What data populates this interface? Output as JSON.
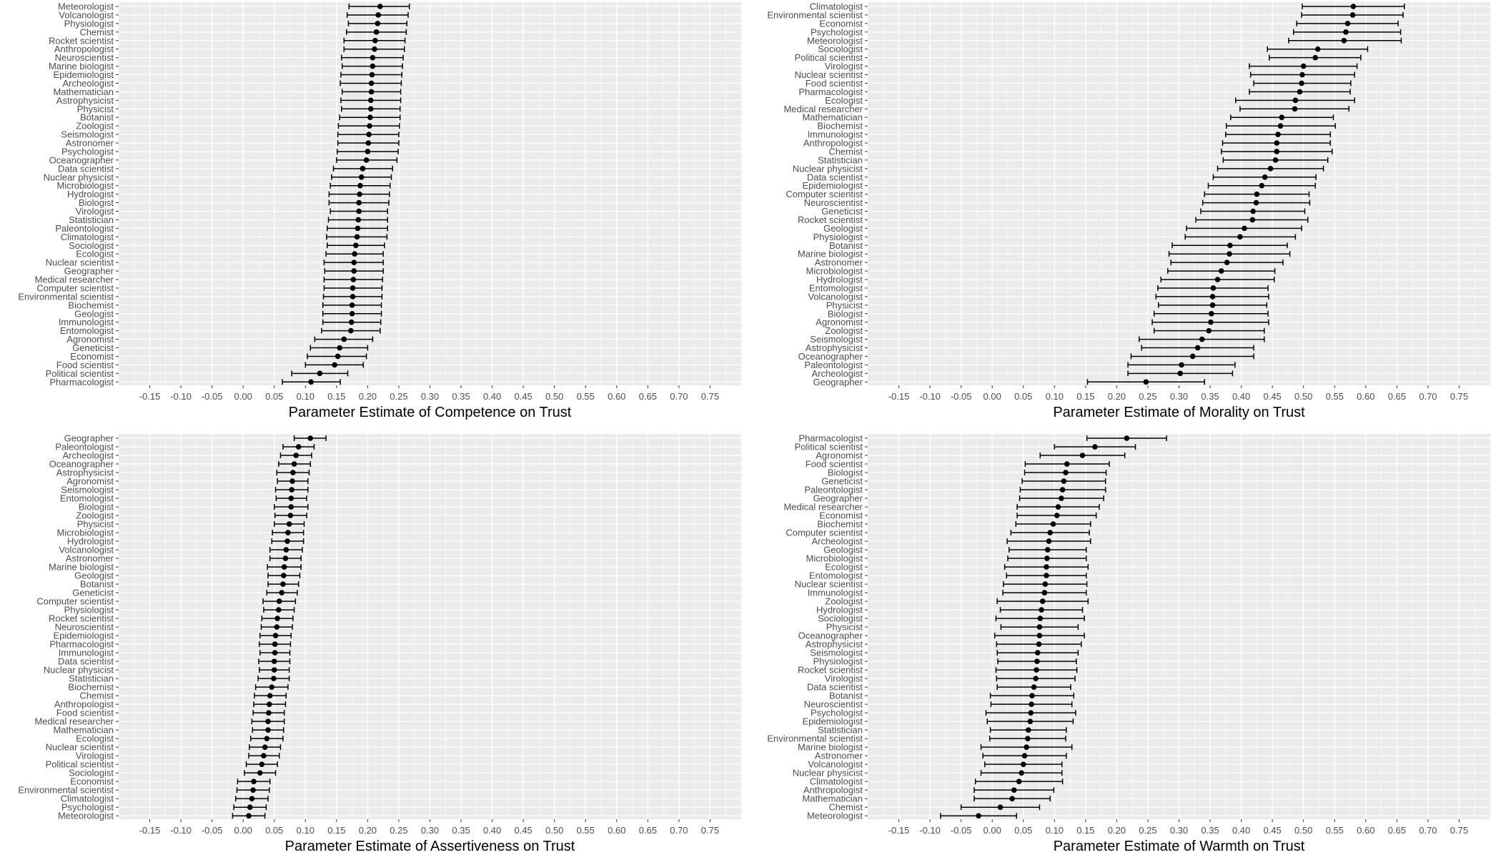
{
  "chart_data": [
    {
      "type": "errorbar",
      "xlabel": "Parameter Estimate of Competence on Trust",
      "xlim": [
        -0.2,
        0.8
      ],
      "xticks": [
        "-0.15",
        "-0.10",
        "-0.05",
        "0.00",
        "0.05",
        "0.10",
        "0.15",
        "0.20",
        "0.25",
        "0.30",
        "0.35",
        "0.40",
        "0.45",
        "0.50",
        "0.55",
        "0.60",
        "0.65",
        "0.70",
        "0.75"
      ],
      "categories": [
        "Meteorologist",
        "Volcanologist",
        "Physiologist",
        "Chemist",
        "Rocket scientist",
        "Anthropologist",
        "Neuroscientist",
        "Marine biologist",
        "Epidemiologist",
        "Archeologist",
        "Mathematician",
        "Astrophysicist",
        "Physicist",
        "Botanist",
        "Zoologist",
        "Seismologist",
        "Astronomer",
        "Psychologist",
        "Oceanographer",
        "Data scientist",
        "Nuclear physicist",
        "Microbiologist",
        "Hydrologist",
        "Biologist",
        "Virologist",
        "Statistician",
        "Paleontologist",
        "Climatologist",
        "Sociologist",
        "Ecologist",
        "Nuclear scientist",
        "Geographer",
        "Medical researcher",
        "Computer scientist",
        "Environmental scientist",
        "Biochemist",
        "Geologist",
        "Immunologist",
        "Entomologist",
        "Agronomist",
        "Geneticist",
        "Economist",
        "Food scientist",
        "Political scientist",
        "Pharmacologist"
      ],
      "estimates": [
        0.22,
        0.217,
        0.216,
        0.214,
        0.212,
        0.211,
        0.208,
        0.208,
        0.207,
        0.206,
        0.206,
        0.205,
        0.205,
        0.204,
        0.203,
        0.202,
        0.201,
        0.2,
        0.198,
        0.192,
        0.19,
        0.188,
        0.187,
        0.186,
        0.186,
        0.185,
        0.184,
        0.183,
        0.181,
        0.179,
        0.178,
        0.178,
        0.177,
        0.176,
        0.176,
        0.175,
        0.175,
        0.174,
        0.173,
        0.162,
        0.155,
        0.152,
        0.147,
        0.123,
        0.109
      ],
      "ci_low": [
        0.17,
        0.167,
        0.169,
        0.166,
        0.162,
        0.162,
        0.158,
        0.159,
        0.157,
        0.156,
        0.159,
        0.157,
        0.158,
        0.155,
        0.153,
        0.152,
        0.152,
        0.151,
        0.15,
        0.145,
        0.142,
        0.14,
        0.138,
        0.138,
        0.14,
        0.137,
        0.135,
        0.134,
        0.135,
        0.133,
        0.13,
        0.131,
        0.13,
        0.13,
        0.129,
        0.128,
        0.128,
        0.128,
        0.126,
        0.115,
        0.108,
        0.103,
        0.1,
        0.078,
        0.063
      ],
      "ci_high": [
        0.267,
        0.265,
        0.263,
        0.262,
        0.26,
        0.259,
        0.257,
        0.256,
        0.255,
        0.254,
        0.253,
        0.253,
        0.252,
        0.252,
        0.251,
        0.25,
        0.25,
        0.249,
        0.247,
        0.24,
        0.238,
        0.236,
        0.235,
        0.234,
        0.232,
        0.232,
        0.232,
        0.231,
        0.227,
        0.225,
        0.225,
        0.225,
        0.224,
        0.223,
        0.223,
        0.222,
        0.222,
        0.221,
        0.22,
        0.208,
        0.2,
        0.198,
        0.193,
        0.168,
        0.156
      ]
    },
    {
      "type": "errorbar",
      "xlabel": "Parameter Estimate of Morality on Trust",
      "xlim": [
        -0.2,
        0.8
      ],
      "xticks": [
        "-0.15",
        "-0.10",
        "-0.05",
        "0.00",
        "0.05",
        "0.10",
        "0.15",
        "0.20",
        "0.25",
        "0.30",
        "0.35",
        "0.40",
        "0.45",
        "0.50",
        "0.55",
        "0.60",
        "0.65",
        "0.70",
        "0.75"
      ],
      "categories": [
        "Climatologist",
        "Environmental scientist",
        "Economist",
        "Psychologist",
        "Meteorologist",
        "Sociologist",
        "Political scientist",
        "Virologist",
        "Nuclear scientist",
        "Food scientist",
        "Pharmacologist",
        "Ecologist",
        "Medical researcher",
        "Mathematician",
        "Biochemist",
        "Immunologist",
        "Anthropologist",
        "Chemist",
        "Statistician",
        "Nuclear physicist",
        "Data scientist",
        "Epidemiologist",
        "Computer scientist",
        "Neuroscientist",
        "Geneticist",
        "Rocket scientist",
        "Geologist",
        "Physiologist",
        "Botanist",
        "Marine biologist",
        "Astronomer",
        "Microbiologist",
        "Hydrologist",
        "Entomologist",
        "Volcanologist",
        "Physicist",
        "Biologist",
        "Agronomist",
        "Zoologist",
        "Seismologist",
        "Astrophysicist",
        "Oceanographer",
        "Paleontologist",
        "Archeologist",
        "Geographer"
      ],
      "estimates": [
        0.58,
        0.579,
        0.571,
        0.568,
        0.565,
        0.523,
        0.519,
        0.5,
        0.498,
        0.497,
        0.494,
        0.487,
        0.486,
        0.465,
        0.463,
        0.459,
        0.457,
        0.457,
        0.455,
        0.447,
        0.438,
        0.433,
        0.425,
        0.424,
        0.419,
        0.418,
        0.405,
        0.398,
        0.382,
        0.381,
        0.377,
        0.368,
        0.362,
        0.355,
        0.354,
        0.354,
        0.352,
        0.351,
        0.348,
        0.337,
        0.33,
        0.322,
        0.304,
        0.302,
        0.247
      ],
      "ci_low": [
        0.498,
        0.497,
        0.489,
        0.484,
        0.476,
        0.442,
        0.445,
        0.413,
        0.415,
        0.42,
        0.413,
        0.391,
        0.398,
        0.383,
        0.376,
        0.375,
        0.37,
        0.368,
        0.371,
        0.362,
        0.355,
        0.347,
        0.341,
        0.338,
        0.335,
        0.327,
        0.312,
        0.31,
        0.289,
        0.284,
        0.287,
        0.282,
        0.271,
        0.266,
        0.263,
        0.267,
        0.26,
        0.257,
        0.26,
        0.236,
        0.24,
        0.223,
        0.218,
        0.218,
        0.153
      ],
      "ci_high": [
        0.662,
        0.66,
        0.652,
        0.656,
        0.657,
        0.603,
        0.592,
        0.586,
        0.582,
        0.576,
        0.575,
        0.582,
        0.573,
        0.548,
        0.551,
        0.543,
        0.543,
        0.546,
        0.539,
        0.532,
        0.52,
        0.519,
        0.509,
        0.51,
        0.502,
        0.507,
        0.497,
        0.487,
        0.474,
        0.478,
        0.467,
        0.454,
        0.453,
        0.443,
        0.444,
        0.441,
        0.443,
        0.444,
        0.437,
        0.437,
        0.42,
        0.42,
        0.39,
        0.386,
        0.341
      ]
    },
    {
      "type": "errorbar",
      "xlabel": "Parameter Estimate of Assertiveness on Trust",
      "xlim": [
        -0.2,
        0.8
      ],
      "xticks": [
        "-0.15",
        "-0.10",
        "-0.05",
        "0.00",
        "0.05",
        "0.10",
        "0.15",
        "0.20",
        "0.25",
        "0.30",
        "0.35",
        "0.40",
        "0.45",
        "0.50",
        "0.55",
        "0.60",
        "0.65",
        "0.70",
        "0.75"
      ],
      "categories": [
        "Geographer",
        "Paleontologist",
        "Archeologist",
        "Oceanographer",
        "Astrophysicist",
        "Agronomist",
        "Seismologist",
        "Entomologist",
        "Biologist",
        "Zoologist",
        "Physicist",
        "Microbiologist",
        "Hydrologist",
        "Volcanologist",
        "Astronomer",
        "Marine biologist",
        "Geologist",
        "Botanist",
        "Geneticist",
        "Computer scientist",
        "Physiologist",
        "Rocket scientist",
        "Neuroscientist",
        "Epidemiologist",
        "Pharmacologist",
        "Immunologist",
        "Data scientist",
        "Nuclear physicist",
        "Statistician",
        "Biochemist",
        "Chemist",
        "Anthropologist",
        "Food scientist",
        "Medical researcher",
        "Mathematician",
        "Ecologist",
        "Nuclear scientist",
        "Virologist",
        "Political scientist",
        "Sociologist",
        "Economist",
        "Environmental scientist",
        "Climatologist",
        "Psychologist",
        "Meteorologist"
      ],
      "estimates": [
        0.108,
        0.089,
        0.085,
        0.082,
        0.08,
        0.079,
        0.078,
        0.077,
        0.077,
        0.076,
        0.074,
        0.072,
        0.071,
        0.069,
        0.068,
        0.066,
        0.065,
        0.064,
        0.062,
        0.058,
        0.057,
        0.055,
        0.054,
        0.052,
        0.051,
        0.051,
        0.05,
        0.05,
        0.049,
        0.046,
        0.043,
        0.042,
        0.041,
        0.04,
        0.04,
        0.038,
        0.035,
        0.033,
        0.03,
        0.027,
        0.017,
        0.016,
        0.014,
        0.011,
        0.009
      ],
      "ci_low": [
        0.082,
        0.064,
        0.06,
        0.057,
        0.054,
        0.055,
        0.052,
        0.053,
        0.05,
        0.051,
        0.05,
        0.047,
        0.046,
        0.043,
        0.043,
        0.039,
        0.04,
        0.04,
        0.038,
        0.032,
        0.033,
        0.03,
        0.029,
        0.027,
        0.026,
        0.027,
        0.025,
        0.026,
        0.024,
        0.02,
        0.018,
        0.017,
        0.016,
        0.014,
        0.015,
        0.012,
        0.01,
        0.009,
        0.005,
        0.002,
        -0.009,
        -0.01,
        -0.012,
        -0.015,
        -0.017
      ],
      "ci_high": [
        0.133,
        0.114,
        0.11,
        0.108,
        0.106,
        0.104,
        0.104,
        0.102,
        0.104,
        0.102,
        0.098,
        0.097,
        0.097,
        0.095,
        0.093,
        0.093,
        0.091,
        0.089,
        0.087,
        0.084,
        0.082,
        0.08,
        0.079,
        0.077,
        0.076,
        0.075,
        0.075,
        0.074,
        0.074,
        0.072,
        0.069,
        0.068,
        0.066,
        0.066,
        0.065,
        0.064,
        0.06,
        0.058,
        0.055,
        0.052,
        0.043,
        0.042,
        0.04,
        0.037,
        0.035
      ]
    },
    {
      "type": "errorbar",
      "xlabel": "Parameter Estimate of Warmth on Trust",
      "xlim": [
        -0.2,
        0.8
      ],
      "xticks": [
        "-0.15",
        "-0.10",
        "-0.05",
        "0.00",
        "0.05",
        "0.10",
        "0.15",
        "0.20",
        "0.25",
        "0.30",
        "0.35",
        "0.40",
        "0.45",
        "0.50",
        "0.55",
        "0.60",
        "0.65",
        "0.70",
        "0.75"
      ],
      "categories": [
        "Pharmacologist",
        "Political scientist",
        "Agronomist",
        "Food scientist",
        "Biologist",
        "Geneticist",
        "Paleontologist",
        "Geographer",
        "Medical researcher",
        "Economist",
        "Biochemist",
        "Computer scientist",
        "Archeologist",
        "Geologist",
        "Microbiologist",
        "Ecologist",
        "Entomologist",
        "Nuclear scientist",
        "Immunologist",
        "Zoologist",
        "Hydrologist",
        "Sociologist",
        "Physicist",
        "Oceanographer",
        "Astrophysicist",
        "Seismologist",
        "Physiologist",
        "Rocket scientist",
        "Virologist",
        "Data scientist",
        "Botanist",
        "Neuroscientist",
        "Psychologist",
        "Epidemiologist",
        "Statistician",
        "Environmental scientist",
        "Marine biologist",
        "Astronomer",
        "Volcanologist",
        "Nuclear physicist",
        "Climatologist",
        "Anthropologist",
        "Mathematician",
        "Chemist",
        "Meteorologist"
      ],
      "estimates": [
        0.216,
        0.165,
        0.145,
        0.12,
        0.118,
        0.115,
        0.113,
        0.111,
        0.106,
        0.104,
        0.098,
        0.093,
        0.091,
        0.089,
        0.088,
        0.087,
        0.087,
        0.085,
        0.084,
        0.081,
        0.079,
        0.077,
        0.076,
        0.076,
        0.075,
        0.073,
        0.072,
        0.071,
        0.07,
        0.067,
        0.064,
        0.063,
        0.062,
        0.061,
        0.058,
        0.057,
        0.055,
        0.052,
        0.05,
        0.047,
        0.043,
        0.035,
        0.032,
        0.013,
        -0.022
      ],
      "ci_low": [
        0.152,
        0.1,
        0.077,
        0.053,
        0.052,
        0.048,
        0.045,
        0.044,
        0.04,
        0.04,
        0.038,
        0.03,
        0.024,
        0.027,
        0.025,
        0.02,
        0.023,
        0.018,
        0.017,
        0.008,
        0.013,
        0.006,
        0.014,
        0.004,
        0.007,
        0.008,
        0.009,
        0.006,
        0.007,
        0.008,
        -0.003,
        -0.002,
        -0.01,
        -0.008,
        -0.003,
        -0.004,
        -0.018,
        -0.015,
        -0.012,
        -0.018,
        -0.027,
        -0.029,
        -0.029,
        -0.05,
        -0.083
      ],
      "ci_high": [
        0.28,
        0.23,
        0.213,
        0.188,
        0.183,
        0.182,
        0.182,
        0.179,
        0.172,
        0.167,
        0.158,
        0.156,
        0.158,
        0.151,
        0.151,
        0.154,
        0.151,
        0.152,
        0.151,
        0.154,
        0.145,
        0.148,
        0.138,
        0.148,
        0.143,
        0.138,
        0.135,
        0.136,
        0.133,
        0.126,
        0.131,
        0.128,
        0.134,
        0.13,
        0.119,
        0.118,
        0.128,
        0.119,
        0.112,
        0.112,
        0.113,
        0.099,
        0.093,
        0.076,
        0.039
      ]
    }
  ]
}
